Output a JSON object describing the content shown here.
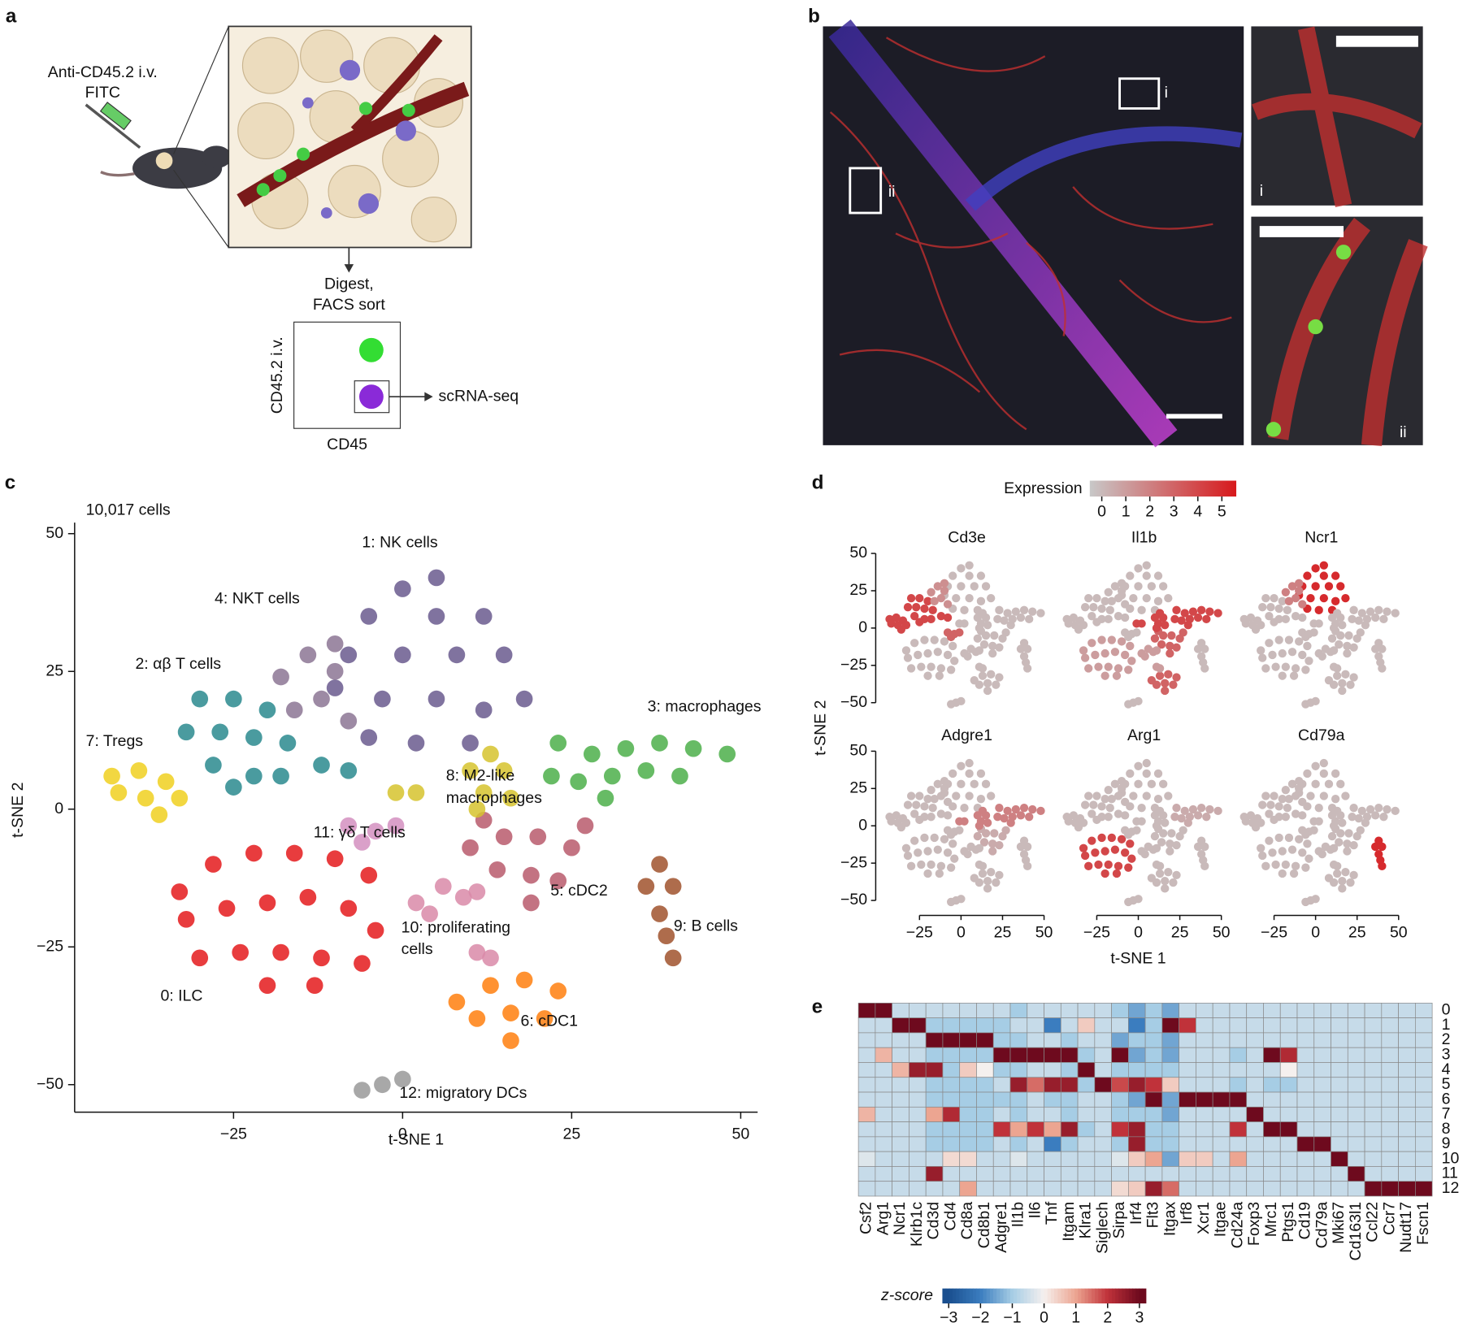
{
  "panel_a": {
    "letter": "a",
    "injection": "Anti-CD45.2 i.v.",
    "injection_2": "FITC",
    "step": "Digest,",
    "step_2": "FACS sort",
    "gate_y": "CD45.2 i.v.",
    "gate_x": "CD45",
    "output": "scRNA-seq"
  },
  "panel_b": {
    "letter": "b",
    "box_labels": [
      "i",
      "ii"
    ],
    "inset_labels": [
      "i",
      "ii"
    ]
  },
  "chart_data": [
    {
      "panel": "c",
      "type": "scatter",
      "subtitle": "10,017 cells",
      "xlabel": "t-SNE 1",
      "ylabel": "t-SNE 2",
      "xlim": [
        -48.5,
        52.5
      ],
      "ylim": [
        -55,
        52
      ],
      "xticks": [
        {
          "value": -25,
          "label": "−25"
        },
        0,
        25,
        50
      ],
      "yticks": [
        {
          "value": -50,
          "label": "−50"
        },
        {
          "value": -25,
          "label": "−25"
        },
        0,
        25,
        50
      ],
      "series": [
        {
          "name": "0: ILC",
          "color": "#e41a1c",
          "x": [
            -33,
            -28,
            -22,
            -16,
            -10,
            -5,
            -32,
            -26,
            -20,
            -14,
            -8,
            -4,
            -30,
            -24,
            -18,
            -12,
            -6,
            -20,
            -13
          ],
          "y": [
            -15,
            -10,
            -8,
            -8,
            -9,
            -12,
            -20,
            -18,
            -17,
            -16,
            -18,
            -22,
            -27,
            -26,
            -26,
            -27,
            -28,
            -32,
            -32
          ]
        },
        {
          "name": "1: NK cells",
          "color": "#6a5a8e",
          "x": [
            0,
            5,
            -5,
            5,
            12,
            -8,
            0,
            8,
            15,
            18,
            -3,
            5,
            12,
            -10,
            2,
            10,
            -5
          ],
          "y": [
            40,
            42,
            35,
            35,
            35,
            28,
            28,
            28,
            28,
            20,
            20,
            20,
            18,
            22,
            12,
            12,
            13
          ]
        },
        {
          "name": "2: αβ T cells",
          "color": "#2a8a8e",
          "x": [
            -30,
            -25,
            -20,
            -32,
            -27,
            -22,
            -17,
            -28,
            -22,
            -18,
            -25,
            -12,
            -8
          ],
          "y": [
            20,
            20,
            18,
            14,
            14,
            13,
            12,
            8,
            6,
            6,
            4,
            8,
            7
          ]
        },
        {
          "name": "3: macrophages",
          "color": "#4caf4a",
          "x": [
            23,
            28,
            33,
            38,
            43,
            48,
            26,
            31,
            36,
            41,
            30,
            22
          ],
          "y": [
            12,
            10,
            11,
            12,
            11,
            10,
            5,
            6,
            7,
            6,
            2,
            6
          ]
        },
        {
          "name": "4: NKT cells",
          "color": "#8c7594",
          "x": [
            -18,
            -14,
            -10,
            -16,
            -12,
            -8,
            -10
          ],
          "y": [
            24,
            28,
            30,
            18,
            20,
            16,
            25
          ]
        },
        {
          "name": "5: cDC2",
          "color": "#b85a6c",
          "x": [
            10,
            15,
            20,
            25,
            14,
            19,
            23,
            19,
            12,
            27
          ],
          "y": [
            -7,
            -5,
            -5,
            -7,
            -11,
            -12,
            -13,
            -17,
            -2,
            -3
          ]
        },
        {
          "name": "6: cDC1",
          "color": "#ff7f0e",
          "x": [
            8,
            13,
            18,
            23,
            11,
            16,
            21,
            16
          ],
          "y": [
            -35,
            -32,
            -31,
            -33,
            -38,
            -37,
            -38,
            -42
          ]
        },
        {
          "name": "7: Tregs",
          "color": "#f0d020",
          "x": [
            -43,
            -39,
            -35,
            -42,
            -38,
            -33,
            -36
          ],
          "y": [
            6,
            7,
            5,
            3,
            2,
            2,
            -1
          ]
        },
        {
          "name": [
            "8: M2-like",
            "macrophages"
          ],
          "color": "#d6c32e",
          "x": [
            13,
            10,
            15,
            12,
            16,
            11,
            -1,
            2
          ],
          "y": [
            10,
            7,
            7,
            3,
            2,
            0,
            3,
            3
          ]
        },
        {
          "name": "9: B cells",
          "color": "#a0522d",
          "x": [
            38,
            36,
            40,
            38,
            39,
            40
          ],
          "y": [
            -10,
            -14,
            -14,
            -19,
            -23,
            -27
          ]
        },
        {
          "name": [
            "10: proliferating",
            "cells"
          ],
          "color": "#d98aa8",
          "x": [
            2,
            6,
            9,
            11,
            4,
            11,
            13
          ],
          "y": [
            -17,
            -14,
            -16,
            -15,
            -19,
            -26,
            -27
          ]
        },
        {
          "name": "11: γδ T cells",
          "color": "#d38fbf",
          "x": [
            -8,
            -4,
            -1,
            -6
          ],
          "y": [
            -3,
            -4,
            -3,
            -6
          ]
        },
        {
          "name": "12: migratory DCs",
          "color": "#999999",
          "x": [
            -6,
            -3,
            0
          ],
          "y": [
            -51,
            -50,
            -49
          ]
        }
      ]
    },
    {
      "panel": "d",
      "type": "expression-grid",
      "legend_title": "Expression",
      "xlabel": "t-SNE 1",
      "ylabel": "t-SNE 2",
      "xlim": [
        -48,
        55
      ],
      "ylim": [
        -55,
        52
      ],
      "xticks": [
        {
          "value": -25,
          "label": "−25"
        },
        0,
        25,
        50
      ],
      "yticks": [
        {
          "value": -50,
          "label": "−50"
        },
        {
          "value": -25,
          "label": "−25"
        },
        0,
        25,
        50
      ],
      "colorbar": {
        "lim": [
          -0.5,
          5.6
        ],
        "ticks": [
          0,
          1,
          2,
          3,
          4,
          5
        ],
        "low_color": "#c8c8c8",
        "high_color": "#d7191c"
      },
      "genes": [
        {
          "name": "Cd3e",
          "values": [
            0,
            0,
            4,
            0,
            1.5,
            0,
            0,
            4,
            0,
            0,
            0,
            3,
            0
          ]
        },
        {
          "name": "Il1b",
          "values": [
            1,
            0,
            0,
            4,
            0,
            3,
            3,
            0,
            4,
            0,
            1,
            0,
            0
          ]
        },
        {
          "name": "Ncr1",
          "values": [
            0,
            5,
            0,
            0,
            2,
            0,
            0,
            0,
            0,
            0,
            0,
            0,
            0
          ]
        },
        {
          "name": "Adgre1",
          "values": [
            0,
            0,
            0,
            2,
            0,
            0.5,
            0,
            0,
            2,
            0,
            0,
            0,
            0
          ]
        },
        {
          "name": "Arg1",
          "values": [
            4,
            0,
            0,
            0.5,
            0,
            0,
            0,
            0,
            0,
            0,
            0,
            0,
            0
          ]
        },
        {
          "name": "Cd79a",
          "values": [
            0,
            0,
            0,
            0,
            0,
            0,
            0,
            0,
            0,
            5,
            0,
            0,
            0
          ]
        }
      ]
    },
    {
      "panel": "e",
      "type": "heatmap",
      "rows": [
        "0",
        "1",
        "2",
        "3",
        "4",
        "5",
        "6",
        "7",
        "8",
        "9",
        "10",
        "11",
        "12"
      ],
      "columns": [
        "Csf2",
        "Arg1",
        "Ncr1",
        "Klrb1c",
        "Cd3d",
        "Cd4",
        "Cd8a",
        "Cd8b1",
        "Adgre1",
        "Il1b",
        "Il6",
        "Tnf",
        "Itgam",
        "Klra1",
        "Siglech",
        "Sirpa",
        "Irf4",
        "Flt3",
        "Itgax",
        "Irf8",
        "Xcr1",
        "Itgae",
        "Cd24a",
        "Foxp3",
        "Mrc1",
        "Ptgs1",
        "Cd19",
        "Cd79a",
        "Mki67",
        "Cd163l1",
        "Ccl22",
        "Ccr7",
        "Nudt17",
        "Fscn1"
      ],
      "values": [
        [
          3,
          3,
          -0.6,
          -0.6,
          -0.6,
          -0.6,
          -0.6,
          -0.6,
          -0.6,
          -1,
          -0.6,
          -0.6,
          -0.6,
          -0.6,
          -0.6,
          -1,
          -1.5,
          -1,
          -1.5,
          -0.6,
          -0.6,
          -0.6,
          -0.6,
          -0.6,
          -0.6,
          -0.6,
          -0.6,
          -0.6,
          -0.6,
          -0.6,
          -0.6,
          -0.6,
          -0.6,
          -0.6
        ],
        [
          -0.6,
          -0.6,
          3,
          3,
          -1,
          -1,
          -1,
          -1,
          -1,
          -0.6,
          -0.6,
          -2,
          -0.6,
          0.5,
          -0.6,
          -0.6,
          -2,
          -1,
          3,
          2,
          -0.6,
          -0.6,
          -0.6,
          -0.6,
          -0.6,
          -0.6,
          -0.6,
          -0.6,
          -0.6,
          -0.6,
          -0.6,
          -0.6,
          -0.6,
          -0.6
        ],
        [
          -0.6,
          -0.6,
          -0.6,
          -0.6,
          3,
          3,
          3,
          3,
          -1,
          -1,
          -0.6,
          -0.6,
          -1,
          -0.6,
          -0.6,
          -1.5,
          -1,
          -1,
          -1.5,
          -0.6,
          -0.6,
          -0.6,
          -0.6,
          -0.6,
          -0.6,
          -0.6,
          -0.6,
          -0.6,
          -0.6,
          -0.6,
          -0.6,
          -0.6,
          -0.6,
          -0.6
        ],
        [
          -0.6,
          0.8,
          -0.6,
          -0.6,
          -1,
          -1,
          -1,
          -1,
          3,
          3,
          3,
          3,
          3,
          -1,
          -0.6,
          3,
          -1.5,
          -1,
          -1.5,
          -0.6,
          -0.6,
          -0.6,
          -1,
          -0.6,
          3,
          2.2,
          -0.6,
          -0.6,
          -0.6,
          -0.6,
          -0.6,
          -0.6,
          -0.6,
          -0.6
        ],
        [
          -0.6,
          -0.6,
          0.8,
          2.5,
          2.5,
          -1,
          0.5,
          0,
          -1,
          -1,
          -0.6,
          -0.6,
          -1,
          3,
          -0.6,
          -1,
          -1,
          -1,
          -1,
          -0.6,
          -0.6,
          -0.6,
          -0.6,
          -0.6,
          -0.6,
          0,
          -0.6,
          -0.6,
          -0.6,
          -0.6,
          -0.6,
          -0.6,
          -0.6,
          -0.6
        ],
        [
          -0.6,
          -0.6,
          -0.6,
          -0.6,
          -1,
          -1,
          -1,
          -1,
          -0.6,
          2.5,
          1.5,
          2.5,
          2.5,
          -1,
          3,
          1.8,
          2.5,
          2,
          0.5,
          -0.6,
          -0.6,
          -0.6,
          -1,
          -0.6,
          -1,
          -1,
          -0.6,
          -0.6,
          -0.6,
          -0.6,
          -0.6,
          -0.6,
          -0.6,
          -0.6
        ],
        [
          -0.6,
          -0.6,
          -0.6,
          -0.6,
          -1,
          -1,
          -1,
          -1,
          -1,
          -1,
          -0.6,
          -1,
          -1,
          -0.6,
          -0.6,
          -1,
          -1.5,
          3,
          -1.5,
          3,
          3,
          3,
          3,
          -0.6,
          -0.6,
          -0.6,
          -0.6,
          -0.6,
          -0.6,
          -0.6,
          -0.6,
          -0.6,
          -0.6,
          -0.6
        ],
        [
          0.8,
          -0.6,
          -0.6,
          -0.6,
          1,
          2.2,
          -1,
          -1,
          -0.6,
          -1,
          -0.6,
          -0.6,
          -1,
          -0.6,
          -0.6,
          -1,
          -1,
          -1,
          -1.5,
          -0.6,
          -0.6,
          -0.6,
          -0.6,
          3,
          -0.6,
          -0.6,
          -0.6,
          -0.6,
          -0.6,
          -0.6,
          -0.6,
          -0.6,
          -0.6,
          -0.6
        ],
        [
          -0.6,
          -0.6,
          -0.6,
          -0.6,
          -1,
          -1,
          -1,
          -1,
          2,
          1,
          2,
          1,
          2.5,
          -1,
          -0.6,
          2,
          2.5,
          -1,
          -1,
          -0.6,
          -0.6,
          -0.6,
          2,
          -0.6,
          3,
          3,
          -0.6,
          -0.6,
          -0.6,
          -0.6,
          -0.6,
          -0.6,
          -0.6,
          -0.6
        ],
        [
          -0.6,
          -0.6,
          -0.6,
          -0.6,
          -1,
          -1,
          -1,
          -1,
          -0.6,
          -1,
          -0.6,
          -2,
          -1,
          -0.6,
          -0.6,
          -1,
          2.5,
          -1,
          -1,
          -0.6,
          -0.6,
          -0.6,
          -0.6,
          -0.6,
          -0.6,
          -0.6,
          3,
          3,
          -0.6,
          -0.6,
          -0.6,
          -0.6,
          -0.6,
          -0.6
        ],
        [
          -0.3,
          -0.6,
          -0.6,
          -0.6,
          -0.6,
          0.3,
          0.3,
          -0.6,
          -0.6,
          -0.3,
          -0.6,
          -0.6,
          -0.6,
          -0.6,
          -0.6,
          -0.3,
          0.5,
          1,
          -1.5,
          0.5,
          0.5,
          -0.6,
          1,
          -0.6,
          -0.6,
          -0.6,
          -0.6,
          -0.6,
          3,
          -0.6,
          -0.6,
          -0.6,
          -0.6,
          -0.6
        ],
        [
          -0.6,
          -0.6,
          -0.6,
          -0.6,
          2.5,
          -0.6,
          -0.6,
          -0.6,
          -0.6,
          -0.6,
          -0.6,
          -0.6,
          -0.6,
          -0.6,
          -0.6,
          -0.6,
          -0.6,
          -0.6,
          -0.6,
          -0.6,
          -0.6,
          -0.6,
          -0.6,
          -0.6,
          -0.6,
          -0.6,
          -0.6,
          -0.6,
          -0.6,
          3,
          -0.6,
          -0.6,
          -0.6,
          -0.6
        ],
        [
          -0.6,
          -0.6,
          -0.6,
          -0.6,
          -0.6,
          -0.6,
          1,
          -0.6,
          -0.6,
          -0.6,
          -0.6,
          -0.6,
          -0.6,
          -0.6,
          -0.6,
          0.3,
          0.5,
          2.5,
          1.5,
          -0.6,
          -0.6,
          -0.6,
          -0.6,
          -0.6,
          -0.6,
          -0.6,
          -0.6,
          -0.6,
          -0.6,
          -0.6,
          3,
          3,
          3,
          3
        ]
      ],
      "colorbar": {
        "label": "z-score",
        "lim": [
          -3.2,
          3.2
        ],
        "ticks": [
          {
            "value": -3,
            "label": "−3"
          },
          {
            "value": -2,
            "label": "−2"
          },
          {
            "value": -1,
            "label": "−1"
          },
          0,
          1,
          2,
          3
        ]
      }
    }
  ]
}
